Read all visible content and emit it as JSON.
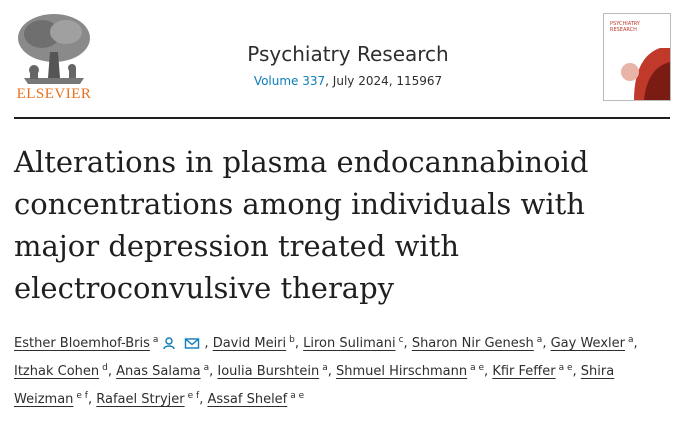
{
  "header": {
    "publisher": "ELSEVIER",
    "journal": "Psychiatry Research",
    "volume": "Volume 337",
    "issue_info": ", July 2024, 115967",
    "cover_title": "PSYCHIATRY RESEARCH"
  },
  "article": {
    "title": "Alterations in plasma endocannabinoid concentrations among individuals with major depression treated with electroconvulsive therapy",
    "author_separator": ",",
    "authors": [
      {
        "name": "Esther Bloemhof-Bris",
        "affiliations": "a"
      },
      {
        "name": "David Meiri",
        "affiliations": "b"
      },
      {
        "name": "Liron Sulimani",
        "affiliations": "c"
      },
      {
        "name": "Sharon Nir Genesh",
        "affiliations": "a"
      },
      {
        "name": "Gay Wexler",
        "affiliations": "a"
      },
      {
        "name": "Itzhak Cohen",
        "affiliations": "d"
      },
      {
        "name": "Anas Salama",
        "affiliations": "a"
      },
      {
        "name": "Ioulia Burshtein",
        "affiliations": "a"
      },
      {
        "name": "Shmuel Hirschmann",
        "affiliations": "a e"
      },
      {
        "name": "Kfir Feffer",
        "affiliations": "a e"
      },
      {
        "name": "Shira Weizman",
        "affiliations": "e f"
      },
      {
        "name": "Rafael Stryjer",
        "affiliations": "e f"
      },
      {
        "name": "Assaf Shelef",
        "affiliations": "a e"
      }
    ]
  }
}
